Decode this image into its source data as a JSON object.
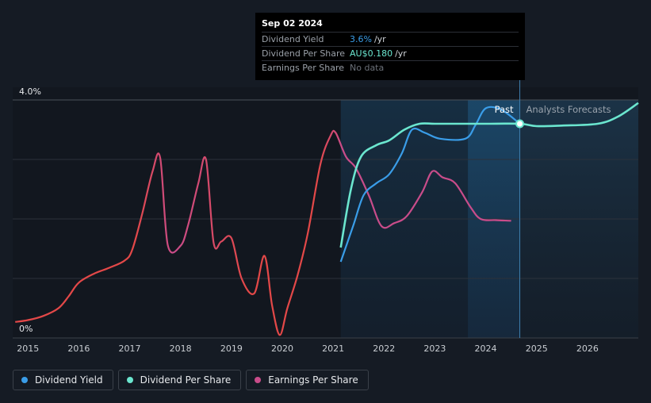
{
  "tooltip": {
    "date": "Sep 02 2024",
    "rows": [
      {
        "label": "Dividend Yield",
        "value": "3.6%",
        "unit": "/yr",
        "color": "#3a9de8"
      },
      {
        "label": "Dividend Per Share",
        "value": "AU$0.180",
        "unit": "/yr",
        "color": "#6be6cf"
      },
      {
        "label": "Earnings Per Share",
        "value": "No data",
        "unit": "",
        "color": "#6b7078"
      }
    ]
  },
  "legend": [
    {
      "label": "Dividend Yield",
      "color": "#3a9de8"
    },
    {
      "label": "Dividend Per Share",
      "color": "#6be6cf"
    },
    {
      "label": "Earnings Per Share",
      "color": "#c94c8a"
    }
  ],
  "chart_data": {
    "type": "line",
    "y_top_label": "4.0%",
    "y_bottom_label": "0%",
    "ylim": [
      0,
      4.0
    ],
    "xlim": [
      2014.7,
      2027.0
    ],
    "x_ticks": [
      2015,
      2016,
      2017,
      2018,
      2019,
      2020,
      2021,
      2022,
      2023,
      2024,
      2025,
      2026
    ],
    "past_label": "Past",
    "forecast_label": "Analysts Forecasts",
    "divider_x": 2024.67,
    "past_shade_start": 2021.15,
    "highlight_start": 2023.65,
    "series": [
      {
        "name": "Earnings Per Share",
        "color": "#c94c8a",
        "early_color": "#e34848",
        "points": [
          [
            2014.75,
            0.27
          ],
          [
            2015.0,
            0.3
          ],
          [
            2015.3,
            0.37
          ],
          [
            2015.6,
            0.5
          ],
          [
            2015.8,
            0.7
          ],
          [
            2016.0,
            0.93
          ],
          [
            2016.3,
            1.08
          ],
          [
            2016.6,
            1.18
          ],
          [
            2016.9,
            1.3
          ],
          [
            2017.05,
            1.48
          ],
          [
            2017.25,
            2.1
          ],
          [
            2017.45,
            2.8
          ],
          [
            2017.6,
            3.03
          ],
          [
            2017.75,
            1.56
          ],
          [
            2018.0,
            1.55
          ],
          [
            2018.15,
            1.9
          ],
          [
            2018.35,
            2.6
          ],
          [
            2018.5,
            3.0
          ],
          [
            2018.65,
            1.6
          ],
          [
            2018.8,
            1.62
          ],
          [
            2019.0,
            1.68
          ],
          [
            2019.2,
            1.0
          ],
          [
            2019.45,
            0.75
          ],
          [
            2019.65,
            1.38
          ],
          [
            2019.8,
            0.55
          ],
          [
            2019.95,
            0.05
          ],
          [
            2020.1,
            0.5
          ],
          [
            2020.3,
            1.05
          ],
          [
            2020.5,
            1.75
          ],
          [
            2020.75,
            2.92
          ],
          [
            2020.95,
            3.4
          ],
          [
            2021.05,
            3.45
          ],
          [
            2021.25,
            3.05
          ],
          [
            2021.45,
            2.85
          ],
          [
            2021.7,
            2.4
          ],
          [
            2021.95,
            1.88
          ],
          [
            2022.2,
            1.93
          ],
          [
            2022.45,
            2.05
          ],
          [
            2022.75,
            2.45
          ],
          [
            2022.95,
            2.8
          ],
          [
            2023.15,
            2.7
          ],
          [
            2023.4,
            2.6
          ],
          [
            2023.7,
            2.2
          ],
          [
            2023.9,
            2.0
          ],
          [
            2024.2,
            1.98
          ],
          [
            2024.5,
            1.97
          ]
        ]
      },
      {
        "name": "Dividend Yield",
        "color": "#3a9de8",
        "points": [
          [
            2021.15,
            1.28
          ],
          [
            2021.4,
            1.9
          ],
          [
            2021.6,
            2.4
          ],
          [
            2021.85,
            2.6
          ],
          [
            2022.1,
            2.75
          ],
          [
            2022.35,
            3.1
          ],
          [
            2022.55,
            3.5
          ],
          [
            2022.8,
            3.45
          ],
          [
            2023.1,
            3.35
          ],
          [
            2023.6,
            3.35
          ],
          [
            2023.8,
            3.58
          ],
          [
            2024.0,
            3.86
          ],
          [
            2024.3,
            3.84
          ],
          [
            2024.67,
            3.6
          ]
        ]
      },
      {
        "name": "Dividend Per Share",
        "color": "#6be6cf",
        "points": [
          [
            2021.15,
            1.52
          ],
          [
            2021.35,
            2.5
          ],
          [
            2021.55,
            3.05
          ],
          [
            2021.85,
            3.24
          ],
          [
            2022.1,
            3.32
          ],
          [
            2022.4,
            3.5
          ],
          [
            2022.7,
            3.6
          ],
          [
            2023.0,
            3.6
          ],
          [
            2023.5,
            3.6
          ],
          [
            2024.0,
            3.6
          ],
          [
            2024.67,
            3.6
          ],
          [
            2025.0,
            3.56
          ],
          [
            2025.5,
            3.57
          ],
          [
            2026.2,
            3.6
          ],
          [
            2026.6,
            3.72
          ],
          [
            2027.0,
            3.95
          ]
        ]
      }
    ]
  }
}
